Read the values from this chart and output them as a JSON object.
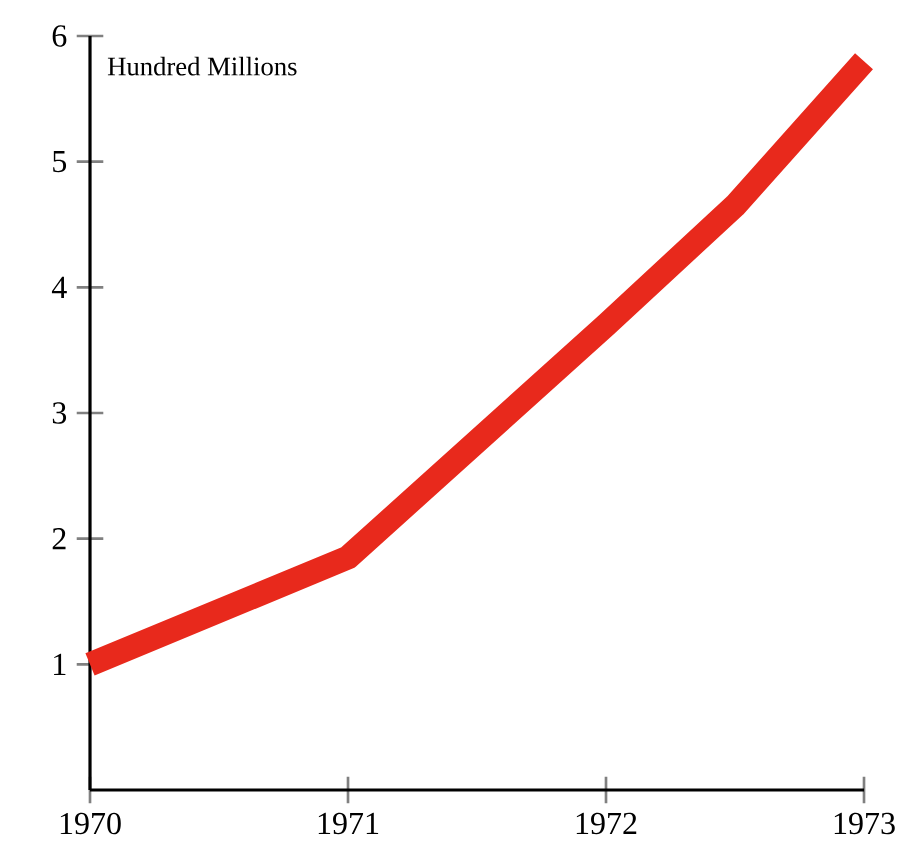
{
  "chart_data": {
    "type": "line",
    "ylabel": "Hundred Millions",
    "x": [
      1970,
      1971,
      1972,
      1972.5,
      1973
    ],
    "series": [
      {
        "color": "#e8291c",
        "values": [
          1.0,
          1.85,
          3.7,
          4.65,
          5.8
        ]
      }
    ],
    "line_style": "solid",
    "xlim": [
      1970,
      1973
    ],
    "ylim": [
      0,
      6
    ],
    "xticks": [
      1970,
      1971,
      1972,
      1973
    ],
    "yticks": [
      1,
      2,
      3,
      4,
      5,
      6
    ]
  }
}
